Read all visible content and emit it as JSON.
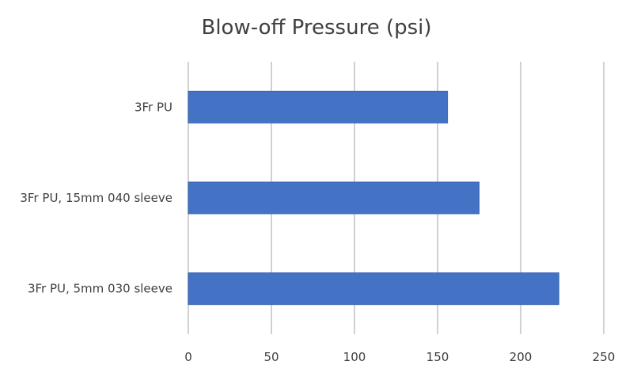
{
  "chart_data": {
    "type": "bar",
    "orientation": "horizontal",
    "title": "Blow-off Pressure (psi)",
    "categories": [
      "3Fr PU",
      "3Fr PU, 15mm 040 sleeve",
      "3Fr PU, 5mm 030 sleeve"
    ],
    "values": [
      156,
      175,
      223
    ],
    "xlabel": "",
    "ylabel": "",
    "xlim": [
      0,
      250
    ],
    "xticks": [
      0,
      50,
      100,
      150,
      200,
      250
    ],
    "grid": "vertical",
    "legend": "none",
    "bar_color": "#4472C4"
  }
}
